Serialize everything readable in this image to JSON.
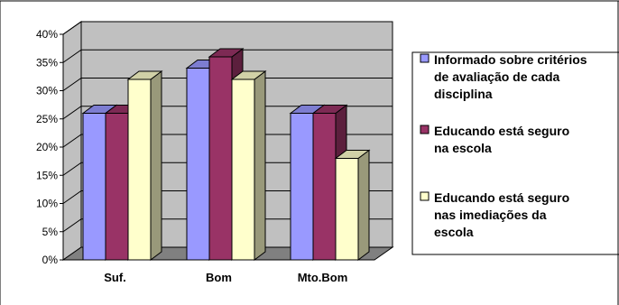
{
  "chart_data": {
    "type": "bar",
    "categories": [
      "Suf.",
      "Bom",
      "Mto.Bom"
    ],
    "series": [
      {
        "name": "Informado sobre critérios de avaliação de cada disciplina",
        "values": [
          26,
          34,
          26
        ],
        "color": "#9999FF"
      },
      {
        "name": " Educando está seguro na escola",
        "values": [
          26,
          36,
          26
        ],
        "color": "#993366"
      },
      {
        "name": "Educando está seguro nas imediações da escola",
        "values": [
          32,
          32,
          18
        ],
        "color": "#FFFFCC"
      }
    ],
    "legend_lines": [
      [
        "Informado sobre critérios",
        "de avaliação de cada",
        "disciplina"
      ],
      [
        " Educando está seguro",
        "na escola"
      ],
      [
        "Educando está seguro",
        "nas imediações da",
        "escola"
      ]
    ],
    "y_ticks": [
      "0%",
      "5%",
      "10%",
      "15%",
      "20%",
      "25%",
      "30%",
      "35%",
      "40%"
    ],
    "ylim": [
      0,
      40
    ],
    "grid": true,
    "legend_position": "right",
    "wall_color": "#C0C0C0",
    "floor_color": "#808080"
  }
}
